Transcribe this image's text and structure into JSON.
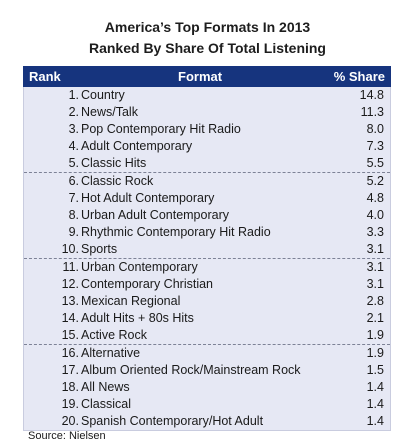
{
  "chart_data": {
    "type": "table",
    "title": "America’s Top Formats In 2013",
    "subtitle": "Ranked By Share Of Total Listening",
    "columns": [
      "Rank",
      "Format",
      "% Share"
    ],
    "rows": [
      {
        "rank": "1.",
        "format": "Country",
        "share": "14.8"
      },
      {
        "rank": "2.",
        "format": "News/Talk",
        "share": "11.3"
      },
      {
        "rank": "3.",
        "format": "Pop Contemporary Hit Radio",
        "share": "8.0"
      },
      {
        "rank": "4.",
        "format": "Adult Contemporary",
        "share": "7.3"
      },
      {
        "rank": "5.",
        "format": "Classic Hits",
        "share": "5.5"
      },
      {
        "rank": "6.",
        "format": "Classic Rock",
        "share": "5.2"
      },
      {
        "rank": "7.",
        "format": "Hot Adult Contemporary",
        "share": "4.8"
      },
      {
        "rank": "8.",
        "format": "Urban Adult Contemporary",
        "share": "4.0"
      },
      {
        "rank": "9.",
        "format": "Rhythmic Contemporary Hit Radio",
        "share": "3.3"
      },
      {
        "rank": "10.",
        "format": "Sports",
        "share": "3.1"
      },
      {
        "rank": "11.",
        "format": "Urban Contemporary",
        "share": "3.1"
      },
      {
        "rank": "12.",
        "format": "Contemporary Christian",
        "share": "3.1"
      },
      {
        "rank": "13.",
        "format": "Mexican Regional",
        "share": "2.8"
      },
      {
        "rank": "14.",
        "format": "Adult Hits + 80s Hits",
        "share": "2.1"
      },
      {
        "rank": "15.",
        "format": "Active Rock",
        "share": "1.9"
      },
      {
        "rank": "16.",
        "format": "Alternative",
        "share": "1.9"
      },
      {
        "rank": "17.",
        "format": "Album Oriented Rock/Mainstream Rock",
        "share": "1.5"
      },
      {
        "rank": "18.",
        "format": "All News",
        "share": "1.4"
      },
      {
        "rank": "19.",
        "format": "Classical",
        "share": "1.4"
      },
      {
        "rank": "20.",
        "format": "Spanish Contemporary/Hot Adult",
        "share": "1.4"
      }
    ],
    "source": "Source:  Nielsen",
    "colors": {
      "header_bg": "#16347e",
      "header_text": "#ffffff",
      "row_bg": "#e6e8f4"
    }
  }
}
